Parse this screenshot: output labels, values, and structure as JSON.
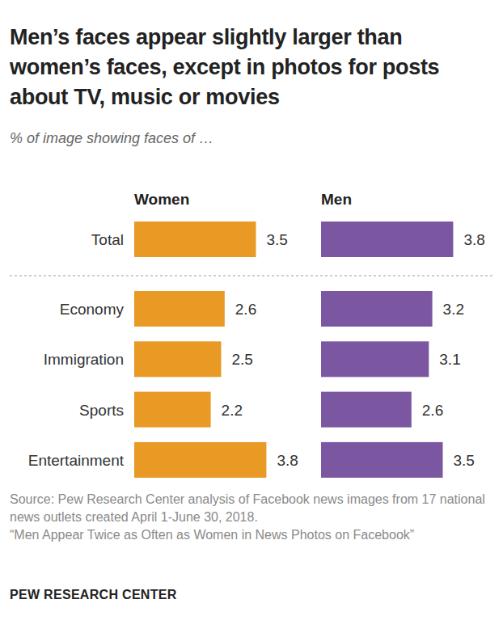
{
  "chart_data": {
    "type": "bar",
    "title": "Men’s faces appear slightly larger than women’s faces, except in photos for posts about TV, music or movies",
    "subtitle": "% of image showing faces of …",
    "categories": [
      "Total",
      "Economy",
      "Immigration",
      "Sports",
      "Entertainment"
    ],
    "series": [
      {
        "name": "Women",
        "color": "#e99a24",
        "values": [
          3.5,
          2.6,
          2.5,
          2.2,
          3.8
        ]
      },
      {
        "name": "Men",
        "color": "#7b57a2",
        "values": [
          3.8,
          3.2,
          3.1,
          2.6,
          3.5
        ]
      }
    ],
    "orientation": "horizontal",
    "data_labels": true,
    "tick_labels": false,
    "grid": false,
    "xlim": [
      0,
      4
    ],
    "xticks": [
      0,
      4
    ],
    "source": "Source: Pew Research Center analysis of Facebook news images from 17 national news outlets created April 1-June 30, 2018.",
    "note": "“Men Appear Twice as Often as Women in News Photos on Facebook”",
    "credit": "PEW RESEARCH CENTER"
  }
}
